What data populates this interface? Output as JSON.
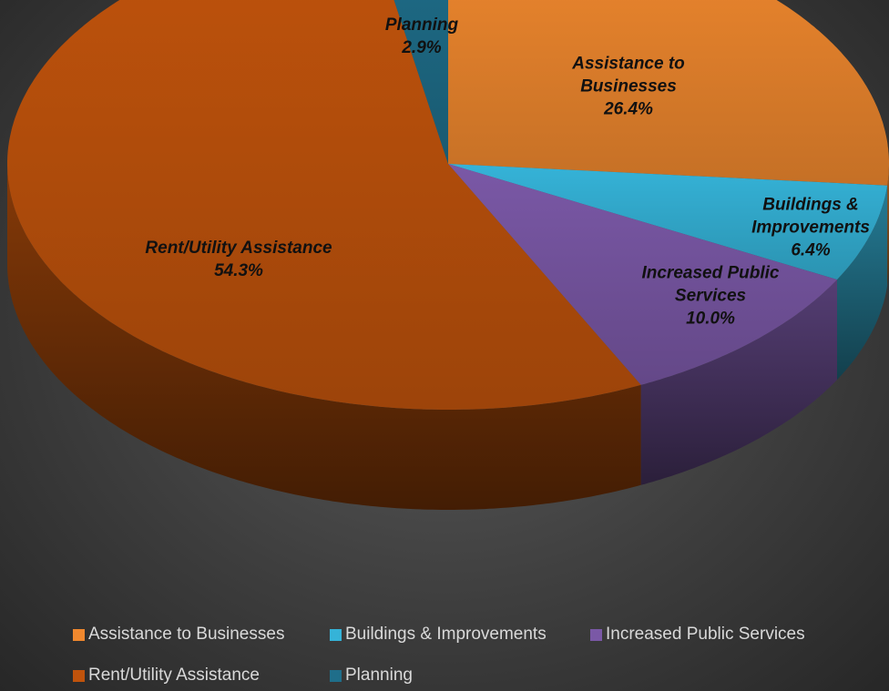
{
  "chart_data": {
    "type": "pie",
    "categories": [
      "Assistance to Businesses",
      "Buildings & Improvements",
      "Increased Public Services",
      "Rent/Utility Assistance",
      "Planning"
    ],
    "values": [
      26.4,
      6.4,
      10.0,
      54.3,
      2.9
    ],
    "value_labels": [
      "26.4%",
      "6.4%",
      "10.0%",
      "54.3%",
      "2.9%"
    ],
    "colors": [
      "#f0882e",
      "#35b3d8",
      "#7a58a6",
      "#c0530c",
      "#1f6e8a"
    ],
    "legend": "bottom"
  }
}
